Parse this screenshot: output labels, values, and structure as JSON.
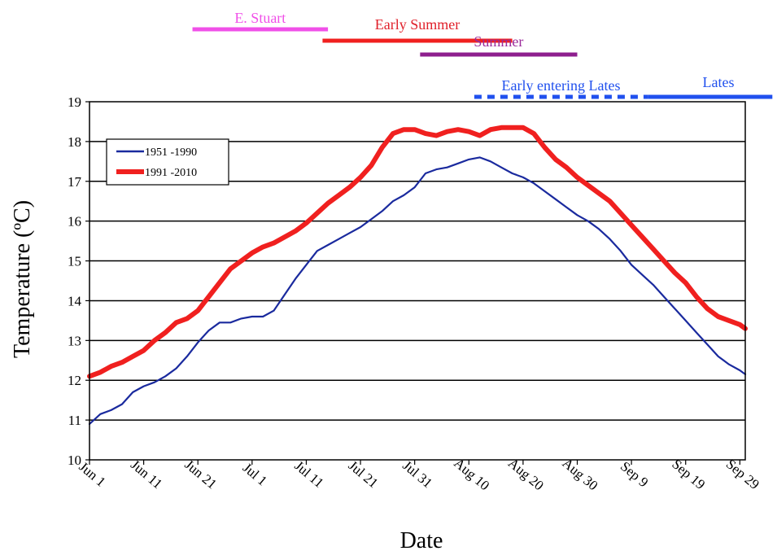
{
  "chart_data": {
    "type": "line",
    "title": "",
    "xlabel": "Date",
    "ylabel": "Temperature  (ºC)",
    "ylim": [
      10,
      19
    ],
    "yticks": [
      "10",
      "11",
      "12",
      "13",
      "14",
      "15",
      "16",
      "17",
      "18",
      "19"
    ],
    "xticks": [
      "Jun 1",
      "Jun 11",
      "Jun 21",
      "Jul 1",
      "Jul 11",
      "Jul 21",
      "Jul 31",
      "Aug 10",
      "Aug 20",
      "Aug 30",
      "Sep 9",
      "Sep 19",
      "Sep 29"
    ],
    "grid": "horizontal",
    "legend_position": "top-left",
    "series": [
      {
        "name": "1951 -1990",
        "color": "#1a2a9e",
        "x": [
          "Jun 1",
          "Jun 3",
          "Jun 5",
          "Jun 7",
          "Jun 9",
          "Jun 11",
          "Jun 13",
          "Jun 15",
          "Jun 17",
          "Jun 19",
          "Jun 21",
          "Jun 23",
          "Jun 25",
          "Jun 27",
          "Jun 29",
          "Jul 1",
          "Jul 3",
          "Jul 5",
          "Jul 7",
          "Jul 9",
          "Jul 11",
          "Jul 13",
          "Jul 15",
          "Jul 17",
          "Jul 19",
          "Jul 21",
          "Jul 23",
          "Jul 25",
          "Jul 27",
          "Jul 29",
          "Jul 31",
          "Aug 2",
          "Aug 4",
          "Aug 6",
          "Aug 8",
          "Aug 10",
          "Aug 12",
          "Aug 14",
          "Aug 16",
          "Aug 18",
          "Aug 20",
          "Aug 22",
          "Aug 24",
          "Aug 26",
          "Aug 28",
          "Aug 30",
          "Sep 1",
          "Sep 3",
          "Sep 5",
          "Sep 7",
          "Sep 9",
          "Sep 11",
          "Sep 13",
          "Sep 15",
          "Sep 17",
          "Sep 19",
          "Sep 21",
          "Sep 23",
          "Sep 25",
          "Sep 27",
          "Sep 29",
          "Sep 30"
        ],
        "values": [
          10.9,
          11.15,
          11.25,
          11.4,
          11.7,
          11.85,
          11.95,
          12.1,
          12.3,
          12.6,
          12.95,
          13.25,
          13.45,
          13.45,
          13.55,
          13.6,
          13.6,
          13.75,
          14.15,
          14.55,
          14.9,
          15.25,
          15.4,
          15.55,
          15.7,
          15.85,
          16.05,
          16.25,
          16.5,
          16.65,
          16.85,
          17.2,
          17.3,
          17.35,
          17.45,
          17.55,
          17.6,
          17.5,
          17.35,
          17.2,
          17.1,
          16.95,
          16.75,
          16.55,
          16.35,
          16.15,
          16.0,
          15.8,
          15.55,
          15.25,
          14.9,
          14.65,
          14.4,
          14.1,
          13.8,
          13.5,
          13.2,
          12.9,
          12.6,
          12.4,
          12.25,
          12.15
        ]
      },
      {
        "name": "1991 -2010",
        "color": "#f0201f",
        "x": [
          "Jun 1",
          "Jun 3",
          "Jun 5",
          "Jun 7",
          "Jun 9",
          "Jun 11",
          "Jun 13",
          "Jun 15",
          "Jun 17",
          "Jun 19",
          "Jun 21",
          "Jun 23",
          "Jun 25",
          "Jun 27",
          "Jun 29",
          "Jul 1",
          "Jul 3",
          "Jul 5",
          "Jul 7",
          "Jul 9",
          "Jul 11",
          "Jul 13",
          "Jul 15",
          "Jul 17",
          "Jul 19",
          "Jul 21",
          "Jul 23",
          "Jul 25",
          "Jul 27",
          "Jul 29",
          "Jul 31",
          "Aug 2",
          "Aug 4",
          "Aug 6",
          "Aug 8",
          "Aug 10",
          "Aug 12",
          "Aug 14",
          "Aug 16",
          "Aug 18",
          "Aug 20",
          "Aug 22",
          "Aug 24",
          "Aug 26",
          "Aug 28",
          "Aug 30",
          "Sep 1",
          "Sep 3",
          "Sep 5",
          "Sep 7",
          "Sep 9",
          "Sep 11",
          "Sep 13",
          "Sep 15",
          "Sep 17",
          "Sep 19",
          "Sep 21",
          "Sep 23",
          "Sep 25",
          "Sep 27",
          "Sep 29",
          "Sep 30"
        ],
        "values": [
          12.1,
          12.2,
          12.35,
          12.45,
          12.6,
          12.75,
          13.0,
          13.2,
          13.45,
          13.55,
          13.75,
          14.1,
          14.45,
          14.8,
          15.0,
          15.2,
          15.35,
          15.45,
          15.6,
          15.75,
          15.95,
          16.2,
          16.45,
          16.65,
          16.85,
          17.1,
          17.4,
          17.85,
          18.2,
          18.3,
          18.3,
          18.2,
          18.15,
          18.25,
          18.3,
          18.25,
          18.15,
          18.3,
          18.35,
          18.35,
          18.35,
          18.2,
          17.85,
          17.55,
          17.35,
          17.1,
          16.9,
          16.7,
          16.5,
          16.2,
          15.9,
          15.6,
          15.3,
          15.0,
          14.7,
          14.45,
          14.1,
          13.8,
          13.6,
          13.5,
          13.4,
          13.3
        ]
      }
    ],
    "period_bars": [
      {
        "label": "E. Stuart",
        "color": "#f050e8",
        "label_color": "#f050e8",
        "start": "Jun 20",
        "end": "Jul 15",
        "style": "solid"
      },
      {
        "label": "Early Summer",
        "color": "#f0201f",
        "label_color": "#e0202a",
        "start": "Jul 14",
        "end": "Aug 18",
        "style": "solid"
      },
      {
        "label": "Summer",
        "color": "#8e1f8e",
        "label_color": "#9a2a9a",
        "start": "Aug 1",
        "end": "Aug 30",
        "style": "solid"
      },
      {
        "label": "Early entering Lates",
        "color": "#2050ee",
        "label_color": "#2050ee",
        "start": "Aug 11",
        "end": "Sep 12",
        "style": "dashed"
      },
      {
        "label": "Lates",
        "color": "#2050ee",
        "label_color": "#2050ee",
        "start": "Sep 12",
        "end": "Oct 5",
        "style": "solid"
      }
    ]
  }
}
